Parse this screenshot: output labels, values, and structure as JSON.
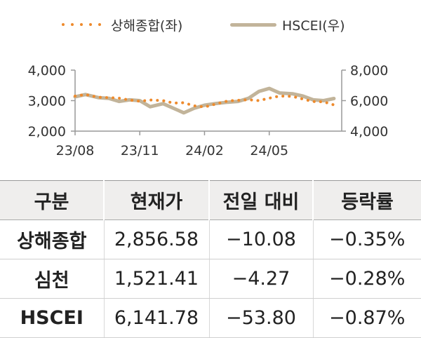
{
  "legend": {
    "left_label": "상해종합(좌)",
    "right_label": "HSCEI(우)"
  },
  "colors": {
    "shanghai": "#ee8a2c",
    "hscei": "#c2b49a",
    "axis": "#999999",
    "header_bg": "#efeeed"
  },
  "chart_data": {
    "type": "line",
    "x_ticks": [
      "23/08",
      "23/11",
      "24/02",
      "24/05"
    ],
    "x_range": [
      "2023-08",
      "2024-08"
    ],
    "y_left": {
      "ticks": [
        "2,000",
        "3,000",
        "4,000"
      ],
      "range": [
        2000,
        4000
      ]
    },
    "y_right": {
      "ticks": [
        "4,000",
        "6,000",
        "8,000"
      ],
      "range": [
        4000,
        8000
      ]
    },
    "grid": false,
    "legend_position": "top",
    "series": [
      {
        "name": "상해종합(좌)",
        "axis": "left",
        "style": "dotted",
        "x": [
          2023.58,
          2023.62,
          2023.67,
          2023.71,
          2023.75,
          2023.79,
          2023.83,
          2023.87,
          2023.92,
          2023.96,
          2024.0,
          2024.04,
          2024.08,
          2024.12,
          2024.17,
          2024.21,
          2024.25,
          2024.29,
          2024.33,
          2024.37,
          2024.42,
          2024.46,
          2024.5,
          2024.54,
          2024.58
        ],
        "values": [
          3150,
          3200,
          3110,
          3100,
          3080,
          3020,
          2980,
          3020,
          3000,
          2920,
          2930,
          2830,
          2790,
          2880,
          2990,
          3010,
          3030,
          3000,
          3080,
          3150,
          3140,
          3050,
          2970,
          2960,
          2860
        ]
      },
      {
        "name": "HSCEI(우)",
        "axis": "right",
        "style": "solid",
        "x": [
          2023.58,
          2023.62,
          2023.67,
          2023.71,
          2023.75,
          2023.79,
          2023.83,
          2023.87,
          2023.92,
          2023.96,
          2024.0,
          2024.04,
          2024.08,
          2024.12,
          2024.17,
          2024.21,
          2024.25,
          2024.29,
          2024.33,
          2024.37,
          2024.42,
          2024.46,
          2024.5,
          2024.54,
          2024.58
        ],
        "values": [
          6250,
          6400,
          6200,
          6150,
          5950,
          6050,
          6000,
          5600,
          5800,
          5500,
          5200,
          5500,
          5700,
          5800,
          5900,
          5950,
          6150,
          6600,
          6800,
          6500,
          6450,
          6300,
          6050,
          6000,
          6140
        ]
      }
    ]
  },
  "table": {
    "headers": [
      "구분",
      "현재가",
      "전일 대비",
      "등락률"
    ],
    "rows": [
      [
        "상해종합",
        "2,856.58",
        "-10.08",
        "-0.35%"
      ],
      [
        "심천",
        "1,521.41",
        "-4.27",
        "-0.28%"
      ],
      [
        "HSCEI",
        "6,141.78",
        "-53.80",
        "-0.87%"
      ]
    ]
  }
}
